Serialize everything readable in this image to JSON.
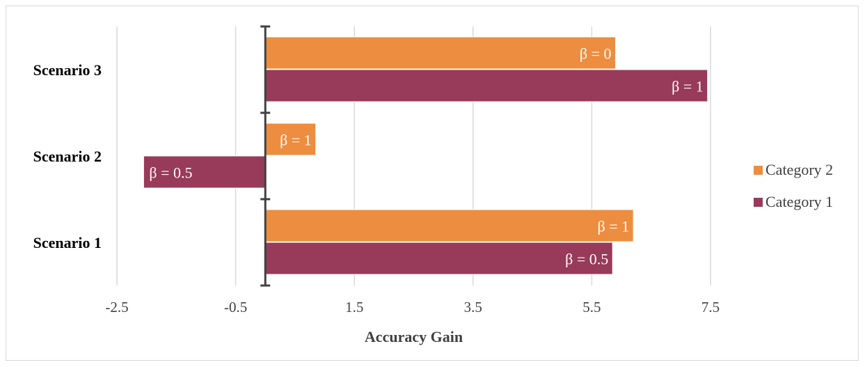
{
  "chart_data": {
    "type": "bar",
    "orientation": "horizontal",
    "categories": [
      "Scenario 1",
      "Scenario 2",
      "Scenario 3"
    ],
    "xlabel": "Accuracy Gain",
    "xlim": [
      -2.5,
      7.5
    ],
    "xticks": [
      -2.5,
      -0.5,
      1.5,
      3.5,
      5.5,
      7.5
    ],
    "xtick_labels": [
      "-2.5",
      "-0.5",
      "1.5",
      "3.5",
      "5.5",
      "7.5"
    ],
    "grid": true,
    "legend_position": "right",
    "series": [
      {
        "name": "Category 2",
        "color": "#ed8d3f",
        "values": [
          6.2,
          0.85,
          5.9
        ],
        "labels": [
          "β = 1",
          "β = 1",
          "β = 0"
        ]
      },
      {
        "name": "Category 1",
        "color": "#983a5a",
        "values": [
          5.85,
          -2.05,
          7.45
        ],
        "labels": [
          "β = 0.5",
          "β = 0.5",
          "β = 1"
        ]
      }
    ]
  }
}
